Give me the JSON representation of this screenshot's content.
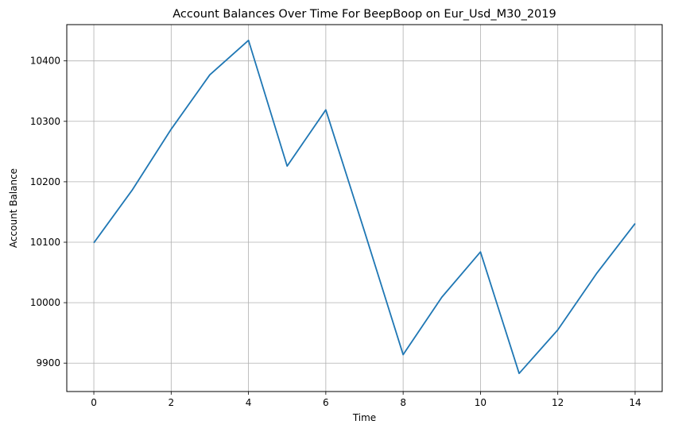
{
  "chart_data": {
    "type": "line",
    "title": "Account Balances Over Time For BeepBoop on Eur_Usd_M30_2019",
    "xlabel": "Time",
    "ylabel": "Account Balance",
    "x": [
      0,
      1,
      2,
      3,
      4,
      5,
      6,
      7,
      8,
      9,
      10,
      11,
      12,
      13,
      14
    ],
    "series": [
      {
        "values": [
          10099,
          10187,
          10287,
          10377,
          10434,
          10226,
          10319,
          10118,
          9914,
          10009,
          10084,
          9883,
          9955,
          10048,
          10131
        ],
        "color": "#1f77b4"
      }
    ],
    "xlim": [
      -0.7,
      14.7
    ],
    "ylim": [
      9853,
      10460
    ],
    "x_ticks": [
      0,
      2,
      4,
      6,
      8,
      10,
      12,
      14
    ],
    "y_ticks": [
      9900,
      10000,
      10100,
      10200,
      10300,
      10400
    ],
    "grid": true,
    "legend": "none"
  }
}
